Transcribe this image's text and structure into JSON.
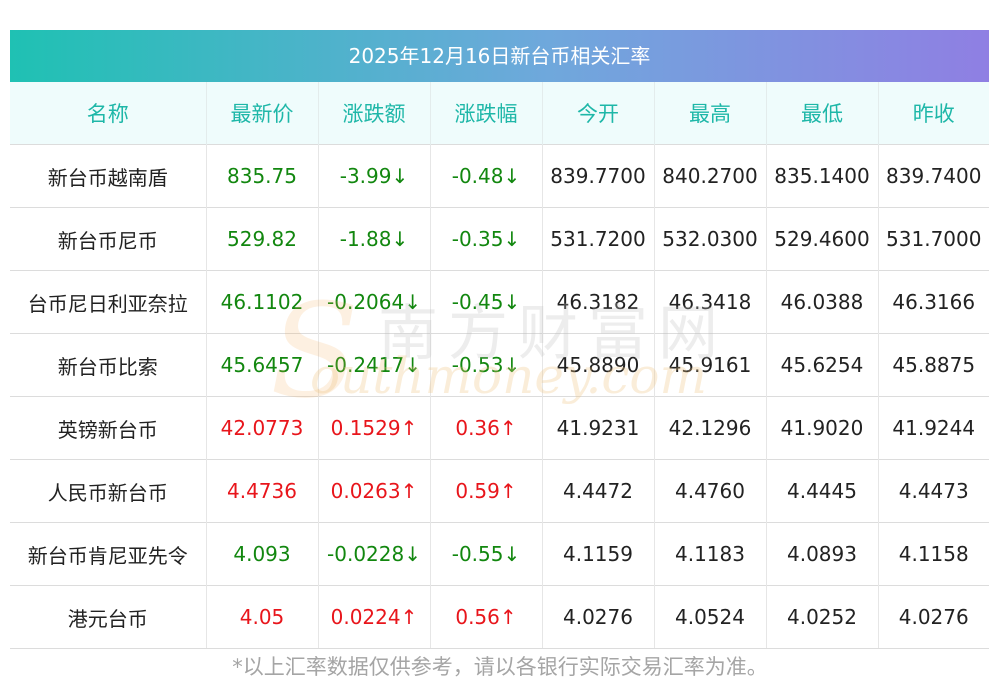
{
  "title": "2025年12月16日新台币相关汇率",
  "headers": [
    "名称",
    "最新价",
    "涨跌额",
    "涨跌幅",
    "今开",
    "最高",
    "最低",
    "昨收"
  ],
  "rows": [
    {
      "name": "新台币越南盾",
      "latest": "835.75",
      "change": "-3.99↓",
      "pct": "-0.48↓",
      "open": "839.7700",
      "high": "840.2700",
      "low": "835.1400",
      "prev": "839.7400",
      "dir": "down"
    },
    {
      "name": "新台币尼币",
      "latest": "529.82",
      "change": "-1.88↓",
      "pct": "-0.35↓",
      "open": "531.7200",
      "high": "532.0300",
      "low": "529.4600",
      "prev": "531.7000",
      "dir": "down"
    },
    {
      "name": "台币尼日利亚奈拉",
      "latest": "46.1102",
      "change": "-0.2064↓",
      "pct": "-0.45↓",
      "open": "46.3182",
      "high": "46.3418",
      "low": "46.0388",
      "prev": "46.3166",
      "dir": "down"
    },
    {
      "name": "新台币比索",
      "latest": "45.6457",
      "change": "-0.2417↓",
      "pct": "-0.53↓",
      "open": "45.8890",
      "high": "45.9161",
      "low": "45.6254",
      "prev": "45.8875",
      "dir": "down"
    },
    {
      "name": "英镑新台币",
      "latest": "42.0773",
      "change": "0.1529↑",
      "pct": "0.36↑",
      "open": "41.9231",
      "high": "42.1296",
      "low": "41.9020",
      "prev": "41.9244",
      "dir": "up"
    },
    {
      "name": "人民币新台币",
      "latest": "4.4736",
      "change": "0.0263↑",
      "pct": "0.59↑",
      "open": "4.4472",
      "high": "4.4760",
      "low": "4.4445",
      "prev": "4.4473",
      "dir": "up"
    },
    {
      "name": "新台币肯尼亚先令",
      "latest": "4.093",
      "change": "-0.0228↓",
      "pct": "-0.55↓",
      "open": "4.1159",
      "high": "4.1183",
      "low": "4.0893",
      "prev": "4.1158",
      "dir": "down"
    },
    {
      "name": "港元台币",
      "latest": "4.05",
      "change": "0.0224↑",
      "pct": "0.56↑",
      "open": "4.0276",
      "high": "4.0524",
      "low": "4.0252",
      "prev": "4.0276",
      "dir": "up"
    }
  ],
  "footnote": "*以上汇率数据仅供参考，请以各银行实际交易汇率为准。",
  "watermark": {
    "cn": "南方财富网",
    "en": "outhmoney.com",
    "s": "S"
  },
  "colors": {
    "down": "#12870f",
    "up": "#e8151b",
    "header_text": "#1eb7a8",
    "gradient_start": "#1fc1b3",
    "gradient_end": "#8f7fe3"
  }
}
